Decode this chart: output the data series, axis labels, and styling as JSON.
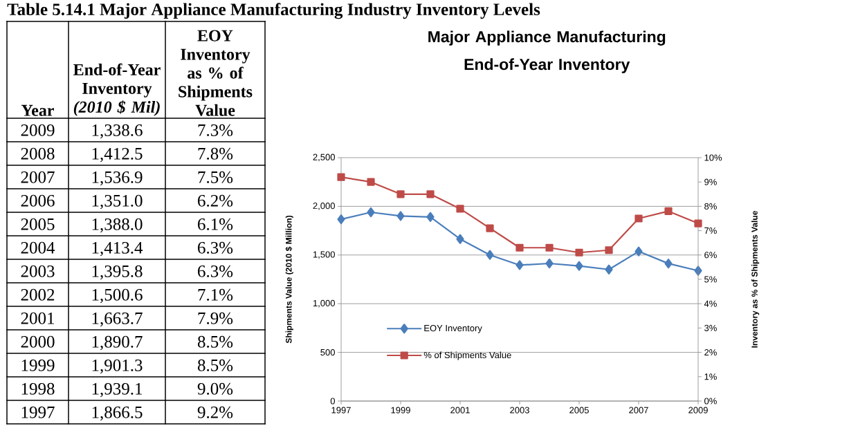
{
  "chart_data": {
    "type": "line",
    "title": "Major Appliance Manufacturing End-of-Year Inventory",
    "ylabel": "Shipments Value (2010 $ Million)",
    "y2label": "Inventory as % of Shipments Value",
    "annotations": [
      "Table 5.14.1 Major Appliance Manufacturing Industry Inventory Levels",
      "Year",
      "End-of-Year Inventory *(2010 $ Mil)*",
      "EOY Inventory as % of Shipments Value",
      "2009",
      "1,338.6",
      "7.3%",
      "2008",
      "1,412.5",
      "7.8%",
      "2007",
      "1,536.9",
      "7.5%",
      "2006",
      "1,351.0",
      "6.2%",
      "2005",
      "1,388.0",
      "6.1%",
      "2004",
      "1,413.4",
      "6.3%",
      "2003",
      "1,395.8",
      "6.3%",
      "2002",
      "1,500.6",
      "7.1%",
      "2001",
      "1,663.7",
      "7.9%",
      "2000",
      "1,890.7",
      "8.5%",
      "1999",
      "1,901.3",
      "8.5%",
      "1998",
      "1,939.1",
      "9.0%",
      "1997",
      "1,866.5",
      "9.2%"
    ],
    "x": [
      1997,
      1998,
      1999,
      2000,
      2001,
      2002,
      2003,
      2004,
      2005,
      2006,
      2007,
      2008,
      2009
    ],
    "xlim": [
      1997,
      2009
    ],
    "xticks": [
      1997,
      1999,
      2001,
      2003,
      2005,
      2007,
      2009
    ],
    "ylim": [
      0,
      2500
    ],
    "yticks": [
      0,
      500,
      {
        "value": 1000,
        "label": "1,000"
      },
      {
        "value": 1500,
        "label": "1,500"
      },
      {
        "value": 2000,
        "label": "2,000"
      },
      {
        "value": 2500,
        "label": "2,500"
      }
    ],
    "y2lim": [
      0,
      10
    ],
    "y2ticks": [
      {
        "value": 0,
        "label": "0%"
      },
      {
        "value": 1,
        "label": "1%"
      },
      {
        "value": 2,
        "label": "2%"
      },
      {
        "value": 3,
        "label": "3%"
      },
      {
        "value": 4,
        "label": "4%"
      },
      {
        "value": 5,
        "label": "5%"
      },
      {
        "value": 6,
        "label": "6%"
      },
      {
        "value": 7,
        "label": "7%"
      },
      {
        "value": 8,
        "label": "8%"
      },
      {
        "value": 9,
        "label": "9%"
      },
      {
        "value": 10,
        "label": "10%"
      }
    ],
    "series": [
      {
        "name": "EOY Inventory",
        "color": "#4a7ebb",
        "marker": "diamond",
        "values": [
          1866.5,
          1939.1,
          1901.3,
          1890.7,
          1663.7,
          1500.6,
          1395.8,
          1413.4,
          1388.0,
          1351.0,
          1536.9,
          1412.5,
          1338.6
        ]
      },
      {
        "name": "% of Shipments Value",
        "color": "#be4b48",
        "marker": "square",
        "axis": "y2",
        "values": [
          9.2,
          9.0,
          8.5,
          8.5,
          7.9,
          7.1,
          6.3,
          6.3,
          6.1,
          6.2,
          7.5,
          7.8,
          7.3
        ]
      }
    ],
    "grid": "y",
    "legend": "bottom left"
  }
}
